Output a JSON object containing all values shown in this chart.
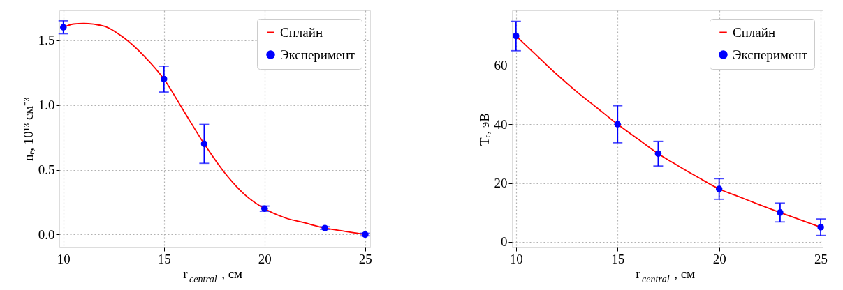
{
  "chart_data": [
    {
      "type": "line",
      "xlabel": "r$_{central}$, см",
      "ylabel": "nₑ, 10¹³ см⁻³",
      "xlim": [
        9.8,
        25.25
      ],
      "ylim": [
        -0.1,
        1.73
      ],
      "xticks": [
        10,
        15,
        20,
        25
      ],
      "yticks": [
        {
          "value": 0,
          "label": "0.0"
        },
        {
          "value": 0.5,
          "label": "0.5"
        },
        {
          "value": 1,
          "label": "1.0"
        },
        {
          "value": 1.5,
          "label": "1.5"
        }
      ],
      "grid": true,
      "legend": "top right",
      "series": [
        {
          "name": "Сплайн",
          "color": "#ff0000",
          "line_style": "solid",
          "x": [
            10,
            10.5,
            11,
            12,
            13,
            14,
            15,
            16,
            17,
            18,
            19,
            20,
            21,
            22,
            23,
            24,
            25
          ],
          "values": [
            1.6,
            1.625,
            1.63,
            1.61,
            1.52,
            1.38,
            1.2,
            0.95,
            0.7,
            0.48,
            0.31,
            0.2,
            0.13,
            0.09,
            0.05,
            0.025,
            0
          ]
        },
        {
          "name": "Эксперимент",
          "type": "scatter",
          "color": "#0000ff",
          "marker": "circle",
          "x": [
            10,
            15,
            17,
            20,
            23,
            25
          ],
          "values": [
            1.6,
            1.2,
            0.7,
            0.2,
            0.05,
            0
          ],
          "errors": [
            0.05,
            0.1,
            0.15,
            0.02,
            0.01,
            0.01
          ]
        }
      ]
    },
    {
      "type": "line",
      "xlabel": "r$_{central}$, см",
      "ylabel": "Tₑ, эВ",
      "xlim": [
        9.8,
        25.1
      ],
      "ylim": [
        -1.9,
        78.7
      ],
      "xticks": [
        10,
        15,
        20,
        25
      ],
      "yticks": [
        0,
        20,
        40,
        60
      ],
      "grid": true,
      "legend": "top right",
      "series": [
        {
          "name": "Сплайн",
          "color": "#ff0000",
          "line_style": "solid",
          "x": [
            10,
            11,
            12,
            13,
            14,
            15,
            16,
            17,
            18,
            19,
            20,
            21,
            22,
            23,
            24,
            25
          ],
          "values": [
            70,
            63.5,
            57,
            51,
            45.5,
            40,
            35,
            30,
            25.8,
            21.8,
            18,
            15.3,
            12.6,
            10,
            7.5,
            5
          ]
        },
        {
          "name": "Эксперимент",
          "type": "scatter",
          "color": "#0000ff",
          "marker": "circle",
          "x": [
            10,
            15,
            17,
            20,
            23,
            25
          ],
          "values": [
            70,
            40,
            30,
            18,
            10,
            5
          ],
          "errors": [
            5,
            6.3,
            4.2,
            3.5,
            3.2,
            2.8
          ]
        }
      ]
    }
  ]
}
